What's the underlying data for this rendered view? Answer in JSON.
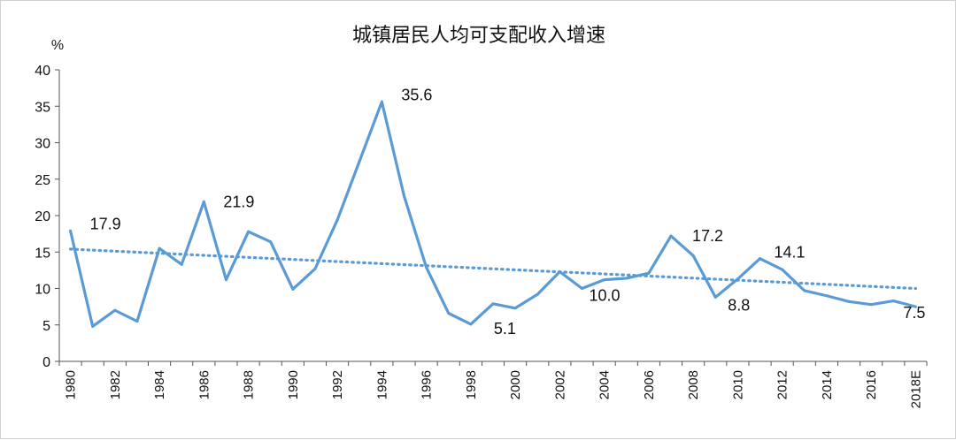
{
  "chart_data": {
    "type": "line",
    "title": "城镇居民人均可支配收入增速",
    "ylabel": "%",
    "xlabel": "",
    "ylim": [
      0,
      40
    ],
    "yticks": [
      0,
      5,
      10,
      15,
      20,
      25,
      30,
      35,
      40
    ],
    "categories": [
      "1980",
      "1981",
      "1982",
      "1983",
      "1984",
      "1985",
      "1986",
      "1987",
      "1988",
      "1989",
      "1990",
      "1991",
      "1992",
      "1993",
      "1994",
      "1995",
      "1996",
      "1997",
      "1998",
      "1999",
      "2000",
      "2001",
      "2002",
      "2003",
      "2004",
      "2005",
      "2006",
      "2007",
      "2008",
      "2009",
      "2010",
      "2011",
      "2012",
      "2013",
      "2014",
      "2015",
      "2016",
      "2017",
      "2018E"
    ],
    "xtick_labels": [
      "1980",
      "1982",
      "1984",
      "1986",
      "1988",
      "1990",
      "1992",
      "1994",
      "1996",
      "1998",
      "2000",
      "2002",
      "2004",
      "2006",
      "2008",
      "2010",
      "2012",
      "2014",
      "2016",
      "2018E"
    ],
    "series": [
      {
        "name": "城镇居民人均可支配收入增速",
        "color": "#5b9bd5",
        "values": [
          17.9,
          4.8,
          7.0,
          5.5,
          15.5,
          13.3,
          21.9,
          11.2,
          17.8,
          16.4,
          9.9,
          12.7,
          19.4,
          27.5,
          35.6,
          22.7,
          12.9,
          6.6,
          5.1,
          7.9,
          7.3,
          9.2,
          12.3,
          10.0,
          11.2,
          11.4,
          12.1,
          17.2,
          14.5,
          8.8,
          11.3,
          14.1,
          12.6,
          9.7,
          9.0,
          8.2,
          7.8,
          8.3,
          7.5
        ]
      }
    ],
    "trendline": {
      "color": "#5b9bd5",
      "start": 15.4,
      "end": 10.0,
      "style": "dotted"
    },
    "annotations": [
      {
        "index": 0,
        "text": "17.9"
      },
      {
        "index": 6,
        "text": "21.9"
      },
      {
        "index": 14,
        "text": "35.6"
      },
      {
        "index": 18,
        "text": "5.1"
      },
      {
        "index": 23,
        "text": "10.0"
      },
      {
        "index": 27,
        "text": "17.2"
      },
      {
        "index": 29,
        "text": "8.8"
      },
      {
        "index": 31,
        "text": "14.1"
      },
      {
        "index": 38,
        "text": "7.5"
      }
    ]
  }
}
